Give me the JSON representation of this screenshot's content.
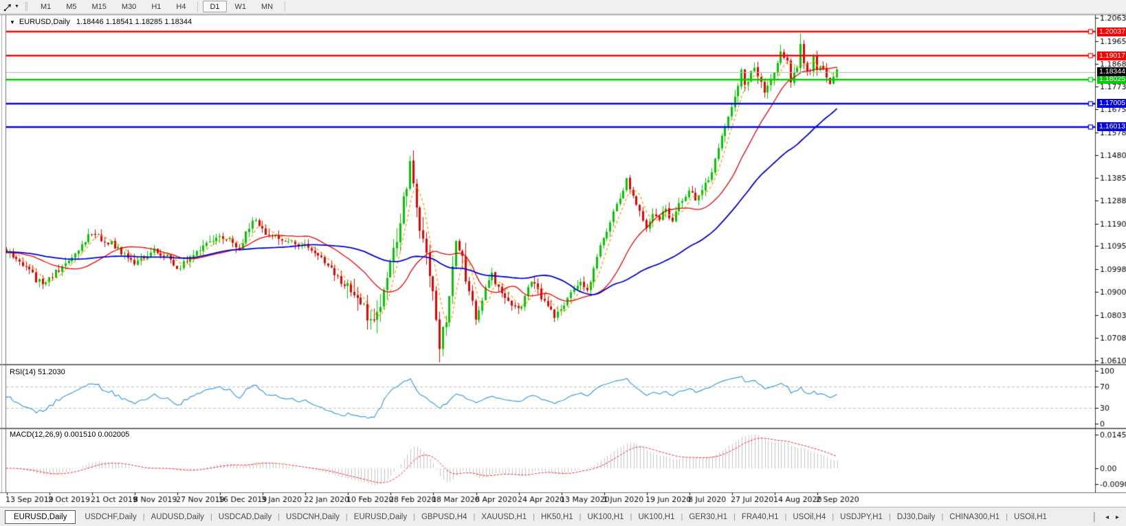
{
  "toolbar": {
    "timeframes": [
      "M1",
      "M5",
      "M15",
      "M30",
      "H1",
      "H4",
      "D1",
      "W1",
      "MN"
    ],
    "active_timeframe": "D1",
    "dropdown_icon": "▼"
  },
  "chart_header": {
    "symbol": "EURUSD,Daily",
    "ohlc": "1.18446 1.18541 1.18285 1.18344"
  },
  "tabs": {
    "active_index": 0,
    "items": [
      "EURUSD,Daily",
      "USDCHF,Daily",
      "AUDUSD,Daily",
      "USDCAD,Daily",
      "USDCNH,Daily",
      "EURUSD,Daily",
      "GBPUSD,H4",
      "XAUUSD,H1",
      "HK50,H1",
      "UK100,H1",
      "UK100,H1",
      "GER30,H1",
      "FRA40,H1",
      "USOil,H4",
      "USDJPY,H1",
      "DJ30,Daily",
      "CHINA300,H1",
      "USOil,H1"
    ],
    "separator": "|",
    "scroll_left_icon": "◂",
    "scroll_right_icon": "▸"
  },
  "chart_data": {
    "type": "candlestick",
    "symbol": "EURUSD",
    "timeframe": "Daily",
    "title": "EURUSD,Daily 1.18446 1.18541 1.18285 1.18344",
    "ohlc_current": {
      "open": 1.18446,
      "high": 1.18541,
      "low": 1.18285,
      "close": 1.18344
    },
    "current_price": 1.18344,
    "current_price_label": "1.18344",
    "price_axis_ticks": [
      "1.20630",
      "1.19655",
      "1.18680",
      "1.17730",
      "1.16755",
      "1.15780",
      "1.14805",
      "1.13855",
      "1.12880",
      "1.11905",
      "1.10955",
      "1.09980",
      "1.09005",
      "1.08030",
      "1.07080",
      "1.06105"
    ],
    "price_range": {
      "top": 1.20748,
      "bottom": 1.0596
    },
    "horizontal_lines": [
      {
        "value": 1.20037,
        "label": "1.20037",
        "color": "#ff0000"
      },
      {
        "value": 1.19017,
        "label": "1.19017",
        "color": "#ff0000"
      },
      {
        "value": 1.18025,
        "label": "1.18025",
        "color": "#00cc00"
      },
      {
        "value": 1.17005,
        "label": "1.17005",
        "color": "#0000e0"
      },
      {
        "value": 1.16013,
        "label": "1.16013",
        "color": "#0000e0"
      }
    ],
    "x_axis_labels": [
      "13 Sep 2019",
      "2 Oct 2019",
      "21 Oct 2019",
      "8 Nov 2019",
      "27 Nov 2019",
      "16 Dec 2019",
      "3 Jan 2020",
      "22 Jan 2020",
      "10 Feb 2020",
      "28 Feb 2020",
      "18 Mar 2020",
      "6 Apr 2020",
      "24 Apr 2020",
      "13 May 2020",
      "1 Jun 2020",
      "19 Jun 2020",
      "8 Jul 2020",
      "27 Jul 2020",
      "14 Aug 2020",
      "2 Sep 2020"
    ],
    "x_label_day_step": 13,
    "days": 254,
    "pre_days": 60,
    "noise_seed": 11,
    "noise_amplitude": 0.0013,
    "volatility_windows": [
      [
        104,
        140,
        2.2
      ],
      [
        216,
        236,
        1.15
      ]
    ],
    "wick_extensions": {
      "242": 0.0035,
      "132": -0.002
    },
    "price_anchors": [
      [
        0,
        1.1072
      ],
      [
        3,
        1.1041
      ],
      [
        6,
        1.1015
      ],
      [
        9,
        1.0952
      ],
      [
        12,
        1.093
      ],
      [
        13,
        1.0958
      ],
      [
        16,
        1.0996
      ],
      [
        20,
        1.1036
      ],
      [
        23,
        1.1106
      ],
      [
        26,
        1.115
      ],
      [
        29,
        1.1126
      ],
      [
        32,
        1.111
      ],
      [
        35,
        1.1071
      ],
      [
        39,
        1.1021
      ],
      [
        42,
        1.1051
      ],
      [
        45,
        1.1076
      ],
      [
        48,
        1.1061
      ],
      [
        52,
        1.1006
      ],
      [
        55,
        1.1026
      ],
      [
        58,
        1.1081
      ],
      [
        61,
        1.1106
      ],
      [
        65,
        1.1141
      ],
      [
        68,
        1.1121
      ],
      [
        71,
        1.1091
      ],
      [
        74,
        1.1181
      ],
      [
        76,
        1.1212
      ],
      [
        78,
        1.1161
      ],
      [
        81,
        1.1136
      ],
      [
        84,
        1.1121
      ],
      [
        88,
        1.1106
      ],
      [
        91,
        1.1093
      ],
      [
        94,
        1.1061
      ],
      [
        97,
        1.1032
      ],
      [
        100,
        1.0981
      ],
      [
        104,
        1.0911
      ],
      [
        107,
        1.0871
      ],
      [
        110,
        1.0801
      ],
      [
        112,
        1.0786
      ],
      [
        114,
        1.0841
      ],
      [
        116,
        1.0951
      ],
      [
        117,
        1.1026
      ],
      [
        119,
        1.1131
      ],
      [
        121,
        1.1281
      ],
      [
        123,
        1.1446
      ],
      [
        124,
        1.1351
      ],
      [
        125,
        1.1271
      ],
      [
        127,
        1.1106
      ],
      [
        129,
        1.0991
      ],
      [
        130,
        1.0916
      ],
      [
        131,
        1.0776
      ],
      [
        132,
        1.0661
      ],
      [
        133,
        1.0731
      ],
      [
        134,
        1.0791
      ],
      [
        135,
        1.0886
      ],
      [
        136,
        1.1031
      ],
      [
        137,
        1.1141
      ],
      [
        138,
        1.1091
      ],
      [
        140,
        1.0966
      ],
      [
        142,
        1.0856
      ],
      [
        143,
        1.0791
      ],
      [
        145,
        1.0871
      ],
      [
        146,
        1.0931
      ],
      [
        148,
        1.0981
      ],
      [
        150,
        1.0911
      ],
      [
        153,
        1.0864
      ],
      [
        156,
        1.0824
      ],
      [
        158,
        1.0879
      ],
      [
        160,
        1.0956
      ],
      [
        162,
        1.0906
      ],
      [
        165,
        1.0835
      ],
      [
        167,
        1.0801
      ],
      [
        169,
        1.0819
      ],
      [
        171,
        1.0871
      ],
      [
        173,
        1.0921
      ],
      [
        175,
        1.0949
      ],
      [
        177,
        1.0903
      ],
      [
        179,
        1.1001
      ],
      [
        182,
        1.1134
      ],
      [
        184,
        1.1201
      ],
      [
        187,
        1.1294
      ],
      [
        189,
        1.1376
      ],
      [
        191,
        1.1301
      ],
      [
        193,
        1.1256
      ],
      [
        195,
        1.1177
      ],
      [
        197,
        1.1221
      ],
      [
        199,
        1.1219
      ],
      [
        201,
        1.1242
      ],
      [
        203,
        1.1201
      ],
      [
        205,
        1.1271
      ],
      [
        208,
        1.1331
      ],
      [
        210,
        1.1301
      ],
      [
        212,
        1.1344
      ],
      [
        214,
        1.1384
      ],
      [
        216,
        1.1451
      ],
      [
        218,
        1.1571
      ],
      [
        220,
        1.1651
      ],
      [
        222,
        1.1721
      ],
      [
        224,
        1.1847
      ],
      [
        225,
        1.1779
      ],
      [
        227,
        1.1831
      ],
      [
        228,
        1.1864
      ],
      [
        230,
        1.1791
      ],
      [
        231,
        1.1739
      ],
      [
        233,
        1.1791
      ],
      [
        234,
        1.1842
      ],
      [
        236,
        1.1921
      ],
      [
        237,
        1.1901
      ],
      [
        238,
        1.1871
      ],
      [
        239,
        1.1798
      ],
      [
        241,
        1.1861
      ],
      [
        242,
        1.1961
      ],
      [
        243,
        1.1871
      ],
      [
        244,
        1.1831
      ],
      [
        245,
        1.1841
      ],
      [
        246,
        1.1901
      ],
      [
        247,
        1.1854
      ],
      [
        249,
        1.1838
      ],
      [
        251,
        1.1779
      ],
      [
        253,
        1.1834
      ]
    ],
    "candle_up_color": "#00c800",
    "candle_down_color": "#e60000",
    "current_price_line_color": "#b4b4b4",
    "moving_averages": [
      {
        "period": 5,
        "color": "#ff9900",
        "style": "dashed",
        "width": 1.2
      },
      {
        "period": 20,
        "color": "#e60000",
        "style": "solid",
        "width": 1.3
      },
      {
        "period": 50,
        "color": "#0000cc",
        "style": "solid",
        "width": 1.8
      }
    ],
    "rsi": {
      "period": 14,
      "value_label": "RSI(14) 51.2030",
      "axis_ticks": [
        "100",
        "70",
        "30",
        "0"
      ],
      "levels": [
        70,
        30
      ],
      "color": "#3f9bdc",
      "level_line_color": "#c0c0c0"
    },
    "macd": {
      "label": "MACD(12,26,9) 0.001510 0.002005",
      "fast": 12,
      "slow": 26,
      "signal": 9,
      "axis_ticks": [
        "0.014556",
        "0.00",
        "-0.009005"
      ],
      "histogram_color": "#c3c3c3",
      "signal_color": "#ff2222"
    }
  }
}
